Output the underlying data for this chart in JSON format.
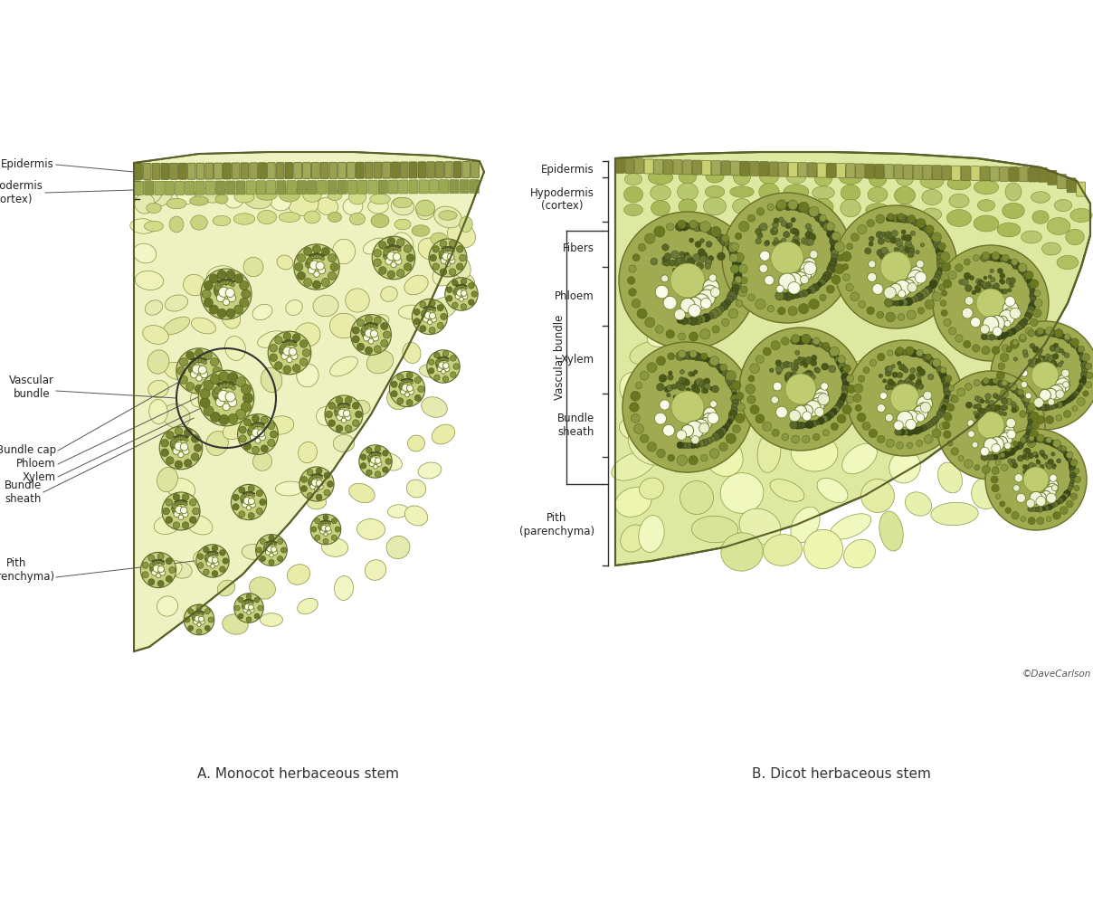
{
  "title_a": "A. Monocot herbaceous stem",
  "title_b": "B. Dicot herbaceous stem",
  "copyright": "©DaveCarlson",
  "bg_color": "#ffffff",
  "colors": {
    "epidermis": "#8a8a3a",
    "hypodermis": "#9a9a4a",
    "pith_bg": "#e8eca0",
    "pith_light": "#f0f4c0",
    "bundle_dark": "#6a7030",
    "bundle_medium": "#8a9040",
    "bundle_sheath": "#5a6028",
    "xylem_white": "#f8fce8",
    "cell_medium": "#c8d480",
    "cell_light": "#e0e8a0",
    "outline": "#4a5020",
    "bracket_color": "#333333",
    "text_color": "#222222",
    "title_color": "#333333"
  },
  "figsize": [
    12.08,
    10.08
  ],
  "dpi": 100
}
